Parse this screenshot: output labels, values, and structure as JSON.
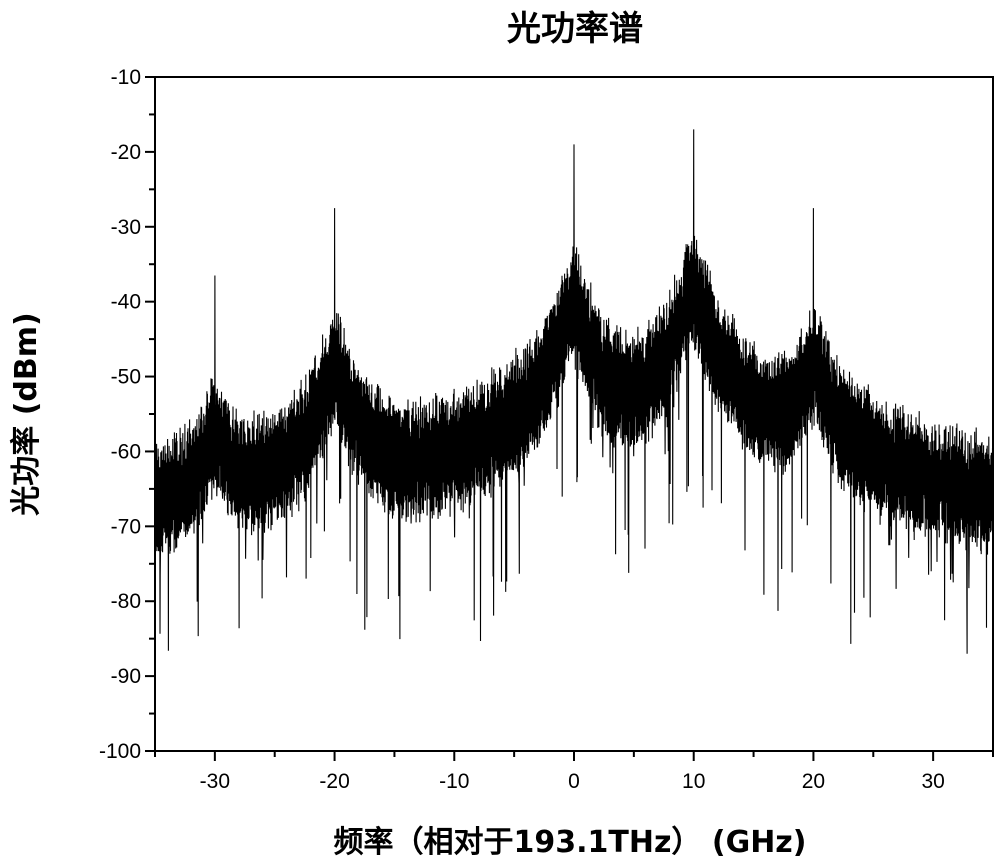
{
  "chart_data": {
    "type": "line",
    "title": "光功率谱",
    "xlabel": "频率（相对于193.1THz） (GHz)",
    "ylabel": "光功率 (dBm)",
    "xlim": [
      -35,
      35
    ],
    "ylim": [
      -100,
      -10
    ],
    "xticks": [
      -30,
      -20,
      -10,
      0,
      10,
      20,
      30
    ],
    "yticks": [
      -100,
      -90,
      -80,
      -70,
      -60,
      -50,
      -40,
      -30,
      -20,
      -10
    ],
    "grid": false,
    "line_color": "#000000",
    "series": [
      {
        "peaks": [
          {
            "x": -30,
            "y": -36.5
          },
          {
            "x": -20,
            "y": -27.5
          },
          {
            "x": 0,
            "y": -19.0
          },
          {
            "x": 10,
            "y": -17.0
          },
          {
            "x": 20,
            "y": -27.5
          }
        ],
        "noise_floor": [
          {
            "x": -35,
            "y": -83
          },
          {
            "x": -25,
            "y": -79
          },
          {
            "x": -15,
            "y": -82
          },
          {
            "x": -8,
            "y": -81
          },
          {
            "x": -3,
            "y": -73
          },
          {
            "x": 5,
            "y": -79
          },
          {
            "x": 15,
            "y": -75
          },
          {
            "x": 25,
            "y": -83
          },
          {
            "x": 35,
            "y": -88
          }
        ]
      }
    ]
  }
}
